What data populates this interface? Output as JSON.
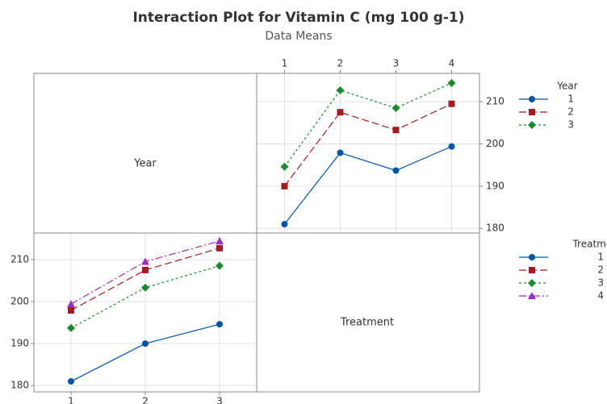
{
  "title": "Interaction Plot for Vitamin C (mg 100 g-1)",
  "subtitle": "Data Means",
  "panels": [
    "Year",
    "Treatment"
  ],
  "chart_data": [
    {
      "type": "line",
      "legend_title": "Year",
      "x": [
        1,
        2,
        3,
        4
      ],
      "xlim": [
        0.5,
        4.5
      ],
      "xticks": [
        1,
        2,
        3,
        4
      ],
      "ylim": [
        178.9,
        216.7
      ],
      "yticks": [
        180,
        190,
        200,
        210
      ],
      "grid": true,
      "xaxis_side": "top",
      "yaxis_side": "right",
      "series": [
        {
          "name": "1",
          "color": "#0054a6",
          "marker": "circle",
          "dash": "solid",
          "values": [
            181.0,
            197.9,
            193.7,
            199.4
          ]
        },
        {
          "name": "2",
          "color": "#a11d21",
          "marker": "square",
          "dash": "long",
          "values": [
            190.0,
            207.5,
            203.3,
            209.5
          ]
        },
        {
          "name": "3",
          "color": "#1b8a2f",
          "marker": "diamond",
          "dash": "short",
          "values": [
            194.6,
            212.7,
            208.5,
            214.4
          ]
        }
      ]
    },
    {
      "type": "line",
      "legend_title": "Treatment",
      "x": [
        1,
        2,
        3
      ],
      "xlim": [
        0.5,
        3.5
      ],
      "xticks": [
        1,
        2,
        3
      ],
      "ylim": [
        178.5,
        216.3
      ],
      "yticks": [
        180,
        190,
        200,
        210
      ],
      "grid": true,
      "xaxis_side": "bottom",
      "yaxis_side": "left",
      "series": [
        {
          "name": "1",
          "color": "#0054a6",
          "marker": "circle",
          "dash": "solid",
          "values": [
            181.0,
            190.0,
            194.6
          ]
        },
        {
          "name": "2",
          "color": "#a11d21",
          "marker": "square",
          "dash": "long",
          "values": [
            197.9,
            207.5,
            212.7
          ]
        },
        {
          "name": "3",
          "color": "#1b8a2f",
          "marker": "diamond",
          "dash": "short",
          "values": [
            193.7,
            203.3,
            208.5
          ]
        },
        {
          "name": "4",
          "color": "#9b30c0",
          "marker": "triangle",
          "dash": "dashdot",
          "values": [
            199.4,
            209.5,
            214.4
          ]
        }
      ]
    }
  ]
}
